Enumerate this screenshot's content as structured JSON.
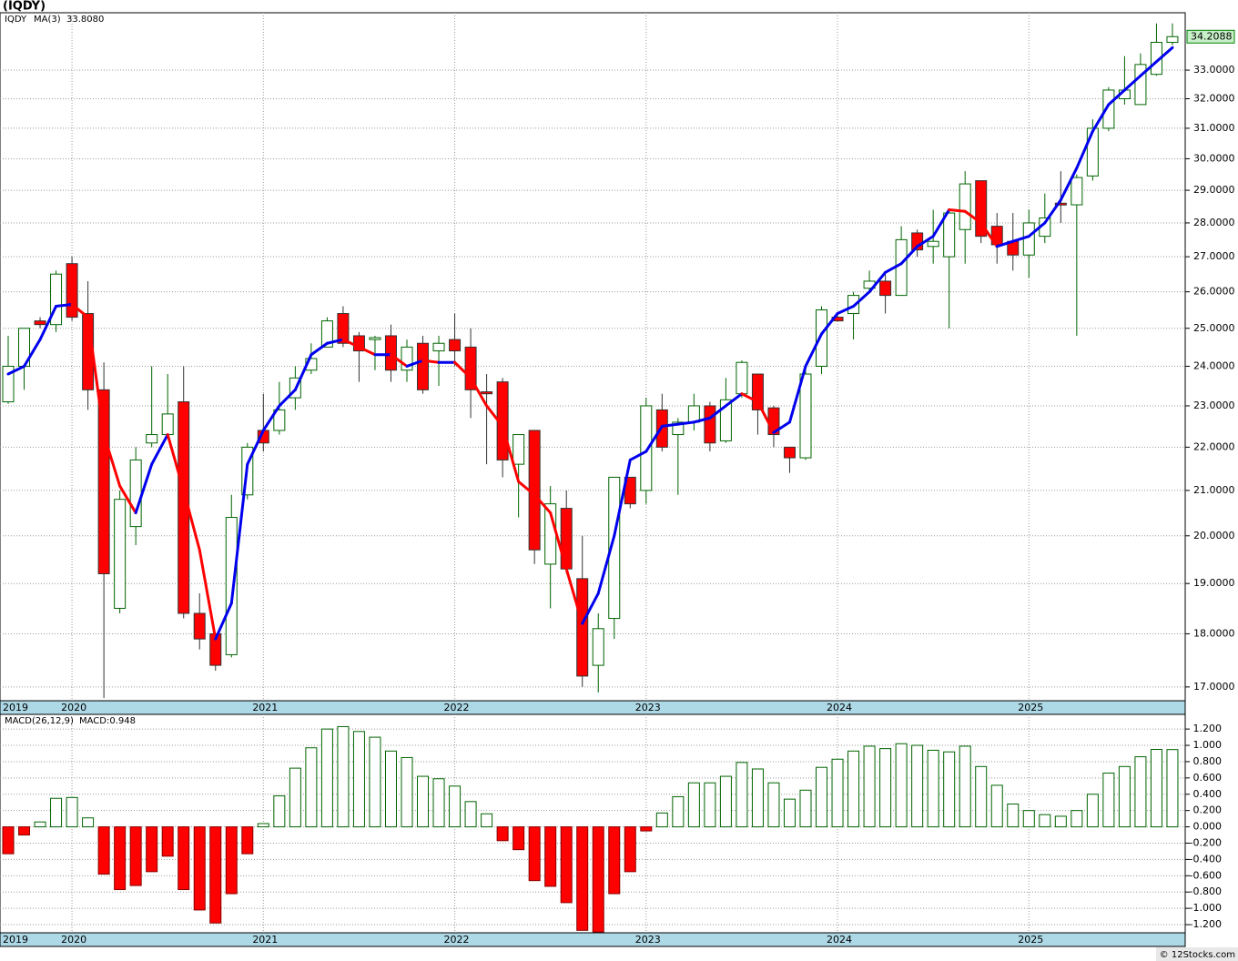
{
  "title": "(IQDY)",
  "footer": "© 12Stocks.com",
  "chart_data": [
    {
      "type": "candlestick",
      "legend": [
        "IQDY",
        "33.8080"
      ],
      "colors": {
        "up": "#006400",
        "down": "#ff0000",
        "ticker": "#008000",
        "ma_up": "#0000ee",
        "ma_down": "#ff0000",
        "last": "#c8f0c8"
      },
      "categories": [
        "2019",
        null,
        null,
        null,
        "2020",
        null,
        null,
        null,
        null,
        null,
        null,
        null,
        null,
        null,
        null,
        null,
        "2021",
        null,
        null,
        null,
        null,
        null,
        null,
        null,
        null,
        null,
        null,
        null,
        "2022",
        null,
        null,
        null,
        null,
        null,
        null,
        null,
        null,
        null,
        null,
        null,
        "2023",
        null,
        null,
        null,
        null,
        null,
        null,
        null,
        null,
        null,
        null,
        null,
        "2024",
        null,
        null,
        null,
        null,
        null,
        null,
        null,
        null,
        null,
        null,
        null,
        "2025",
        null,
        null,
        null,
        null,
        null,
        null,
        null,
        null,
        null
      ],
      "open": [
        23.1,
        24.0,
        25.2,
        25.1,
        26.8,
        25.4,
        23.4,
        18.5,
        20.2,
        22.1,
        22.3,
        23.1,
        18.4,
        18.0,
        17.6,
        20.9,
        22.4,
        22.4,
        23.2,
        23.9,
        24.5,
        25.4,
        24.8,
        24.7,
        24.8,
        23.9,
        24.6,
        24.4,
        24.7,
        24.5,
        23.35,
        23.6,
        21.6,
        22.4,
        19.4,
        20.6,
        19.1,
        17.4,
        18.3,
        21.3,
        21.0,
        22.9,
        22.3,
        22.6,
        23.0,
        22.15,
        23.3,
        23.8,
        22.95,
        22.0,
        21.75,
        24.0,
        25.3,
        25.4,
        26.1,
        26.3,
        25.9,
        27.7,
        27.3,
        27.0,
        27.8,
        29.3,
        27.9,
        27.45,
        27.05,
        27.6,
        28.6,
        28.55,
        29.45,
        31.0,
        32.0,
        31.8,
        32.85,
        34.0
      ],
      "high": [
        24.8,
        25.0,
        25.3,
        26.6,
        27.0,
        26.3,
        24.1,
        21.0,
        22.0,
        24.0,
        23.8,
        24.0,
        18.8,
        18.0,
        20.9,
        22.1,
        23.3,
        23.6,
        24.0,
        24.6,
        25.3,
        25.6,
        24.9,
        24.8,
        25.1,
        24.7,
        24.8,
        24.8,
        25.4,
        25.0,
        23.8,
        23.7,
        22.3,
        22.4,
        21.1,
        21.0,
        20.0,
        18.4,
        21.3,
        21.3,
        23.2,
        23.3,
        22.7,
        23.3,
        23.1,
        23.7,
        24.15,
        23.8,
        23.0,
        22.0,
        23.9,
        25.6,
        25.35,
        26.0,
        26.6,
        26.5,
        27.9,
        27.8,
        28.4,
        28.4,
        29.6,
        29.3,
        28.3,
        28.3,
        28.4,
        28.9,
        29.6,
        29.5,
        31.3,
        32.4,
        33.5,
        33.6,
        34.7,
        34.7
      ],
      "low": [
        23.05,
        23.4,
        25.0,
        24.9,
        25.2,
        22.9,
        16.8,
        18.4,
        19.8,
        22.0,
        22.2,
        18.3,
        17.7,
        17.3,
        17.55,
        20.8,
        21.9,
        22.3,
        22.9,
        23.8,
        24.5,
        24.5,
        23.6,
        23.9,
        23.6,
        23.6,
        23.3,
        23.5,
        24.0,
        22.7,
        21.6,
        21.3,
        20.4,
        19.4,
        18.5,
        19.2,
        17.0,
        16.9,
        17.9,
        20.6,
        20.7,
        21.9,
        20.9,
        22.4,
        21.9,
        22.1,
        23.2,
        22.3,
        22.0,
        21.4,
        21.7,
        23.8,
        25.2,
        24.7,
        26.0,
        25.4,
        25.9,
        27.0,
        26.8,
        25.0,
        26.8,
        27.4,
        26.8,
        26.6,
        26.4,
        27.4,
        28.0,
        24.8,
        29.3,
        30.9,
        31.8,
        31.8,
        32.8,
        33.9
      ],
      "close": [
        24.0,
        25.0,
        25.1,
        26.5,
        25.3,
        23.4,
        19.2,
        20.8,
        21.7,
        22.3,
        22.8,
        18.4,
        17.9,
        17.4,
        20.4,
        22.0,
        22.1,
        22.9,
        23.7,
        24.2,
        25.2,
        24.6,
        24.4,
        24.75,
        23.9,
        24.5,
        23.4,
        24.6,
        24.4,
        23.4,
        23.3,
        21.7,
        22.3,
        19.7,
        20.7,
        19.3,
        17.2,
        18.1,
        21.3,
        20.7,
        23.0,
        22.0,
        22.6,
        23.0,
        22.1,
        23.15,
        24.1,
        22.9,
        22.3,
        21.75,
        23.8,
        25.5,
        25.2,
        25.9,
        26.3,
        25.9,
        27.5,
        27.2,
        27.45,
        28.3,
        29.2,
        27.6,
        27.35,
        27.05,
        28.0,
        28.15,
        28.55,
        29.4,
        31.0,
        32.3,
        32.3,
        33.2,
        34.0,
        34.2088
      ],
      "series": [
        {
          "name": "MA(3)",
          "values": [
            23.8,
            24.0,
            24.7,
            25.6,
            25.65,
            25.3,
            22.3,
            21.1,
            20.5,
            21.6,
            22.3,
            21.0,
            19.7,
            17.9,
            18.6,
            21.6,
            22.4,
            23.0,
            23.4,
            24.3,
            24.6,
            24.7,
            24.5,
            24.3,
            24.3,
            24.0,
            24.15,
            24.1,
            24.1,
            23.7,
            23.0,
            22.5,
            21.2,
            20.9,
            20.5,
            19.3,
            18.2,
            18.8,
            20.0,
            21.7,
            21.9,
            22.5,
            22.55,
            22.6,
            22.7,
            23.0,
            23.3,
            23.1,
            22.35,
            22.6,
            24.0,
            24.85,
            25.4,
            25.6,
            26.0,
            26.55,
            26.8,
            27.3,
            27.6,
            28.4,
            28.35,
            28.0,
            27.3,
            27.45,
            27.6,
            28.0,
            28.7,
            29.7,
            30.9,
            31.8,
            32.3,
            32.8,
            33.3,
            33.808
          ]
        }
      ],
      "ylim": [
        16.75,
        35.1
      ],
      "log_scale": true,
      "grid": true,
      "yticks": [
        {
          "value": 17,
          "label": "17.0000"
        },
        {
          "value": 18,
          "label": "18.0000"
        },
        {
          "value": 19,
          "label": "19.0000"
        },
        {
          "value": 20,
          "label": "20.0000"
        },
        {
          "value": 21,
          "label": "21.0000"
        },
        {
          "value": 22,
          "label": "22.0000"
        },
        {
          "value": 23,
          "label": "23.0000"
        },
        {
          "value": 24,
          "label": "24.0000"
        },
        {
          "value": 25,
          "label": "25.0000"
        },
        {
          "value": 26,
          "label": "26.0000"
        },
        {
          "value": 27,
          "label": "27.0000"
        },
        {
          "value": 28,
          "label": "28.0000"
        },
        {
          "value": 29,
          "label": "29.0000"
        },
        {
          "value": 30,
          "label": "30.0000"
        },
        {
          "value": 31,
          "label": "31.0000"
        },
        {
          "value": 32,
          "label": "32.0000"
        },
        {
          "value": 33,
          "label": "33.0000"
        }
      ]
    },
    {
      "type": "bar",
      "legend": [
        "MACD(26,12,9)",
        "MACD:0.948"
      ],
      "colors": {
        "up": "#006400",
        "down": "#ff0000"
      },
      "categories": [
        "2019",
        null,
        null,
        null,
        "2020",
        null,
        null,
        null,
        null,
        null,
        null,
        null,
        null,
        null,
        null,
        null,
        "2021",
        null,
        null,
        null,
        null,
        null,
        null,
        null,
        null,
        null,
        null,
        null,
        "2022",
        null,
        null,
        null,
        null,
        null,
        null,
        null,
        null,
        null,
        null,
        null,
        "2023",
        null,
        null,
        null,
        null,
        null,
        null,
        null,
        null,
        null,
        null,
        null,
        "2024",
        null,
        null,
        null,
        null,
        null,
        null,
        null,
        null,
        null,
        null,
        null,
        "2025",
        null,
        null,
        null,
        null,
        null,
        null,
        null,
        null,
        null
      ],
      "values": [
        -0.33,
        -0.1,
        0.06,
        0.35,
        0.36,
        0.11,
        -0.58,
        -0.77,
        -0.72,
        -0.55,
        -0.36,
        -0.77,
        -1.02,
        -1.18,
        -0.82,
        -0.33,
        0.04,
        0.38,
        0.72,
        0.97,
        1.2,
        1.23,
        1.17,
        1.1,
        0.93,
        0.85,
        0.62,
        0.59,
        0.5,
        0.31,
        0.16,
        -0.17,
        -0.28,
        -0.66,
        -0.73,
        -0.93,
        -1.27,
        -1.29,
        -0.82,
        -0.55,
        -0.05,
        0.17,
        0.37,
        0.54,
        0.54,
        0.62,
        0.79,
        0.71,
        0.54,
        0.34,
        0.45,
        0.73,
        0.83,
        0.93,
        0.99,
        0.96,
        1.02,
        1.0,
        0.94,
        0.92,
        0.99,
        0.74,
        0.51,
        0.28,
        0.2,
        0.15,
        0.13,
        0.2,
        0.4,
        0.66,
        0.74,
        0.86,
        0.95,
        0.948
      ],
      "ylim": [
        -1.3,
        1.38
      ],
      "grid": true,
      "yticks": [
        {
          "value": 1.2,
          "label": "1.200"
        },
        {
          "value": 1.0,
          "label": "1.000"
        },
        {
          "value": 0.8,
          "label": "0.800"
        },
        {
          "value": 0.6,
          "label": "0.600"
        },
        {
          "value": 0.4,
          "label": "0.400"
        },
        {
          "value": 0.2,
          "label": "0.200"
        },
        {
          "value": 0,
          "label": "0.000"
        },
        {
          "value": -0.2,
          "label": "-0.200"
        },
        {
          "value": -0.4,
          "label": "-0.400"
        },
        {
          "value": -0.6,
          "label": "-0.600"
        },
        {
          "value": -0.8,
          "label": "-0.800"
        },
        {
          "value": -1.0,
          "label": "-1.000"
        },
        {
          "value": -1.2,
          "label": "-1.200"
        }
      ]
    }
  ]
}
